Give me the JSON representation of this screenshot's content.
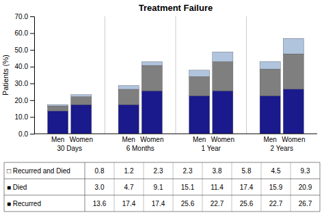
{
  "chart_data": {
    "type": "bar",
    "stacked": true,
    "grid": false,
    "title": "Treatment Failure",
    "ylabel": "Patients (%)",
    "groups": [
      "30 Days",
      "6 Months",
      "1 Year",
      "2 Years"
    ],
    "categories": [
      "Men",
      "Women",
      "Men",
      "Women",
      "Men",
      "Women",
      "Men",
      "Women"
    ],
    "series": [
      {
        "color": "#1a1a8c",
        "values": [
          13.6,
          17.4,
          17.4,
          25.6,
          22.7,
          25.6,
          22.7,
          26.7
        ]
      },
      {
        "color": "#7f7f7f",
        "values": [
          3.0,
          4.7,
          9.1,
          15.1,
          11.4,
          17.4,
          15.9,
          20.9
        ]
      },
      {
        "color": "#b0c4de",
        "values": [
          0.8,
          1.2,
          2.3,
          2.3,
          3.8,
          5.8,
          4.5,
          9.3
        ]
      }
    ],
    "ylim": [
      0,
      70.0
    ],
    "yticks": [
      {
        "value": 0.0,
        "label": "0.0"
      },
      {
        "value": 10.0,
        "label": "10.0"
      },
      {
        "value": 20.0,
        "label": "20.0"
      },
      {
        "value": 30.0,
        "label": "30.0"
      },
      {
        "value": 40.0,
        "label": "40.0"
      },
      {
        "value": 50.0,
        "label": "50.0"
      },
      {
        "value": 60.0,
        "label": "60.0"
      },
      {
        "value": 70.0,
        "label": "70.0"
      }
    ],
    "table": {
      "rows": [
        "□ Recurred and Died",
        "■ Died",
        "■ Recurred"
      ],
      "cells": [
        [
          "0.8",
          "1.2",
          "2.3",
          "2.3",
          "3.8",
          "5.8",
          "4.5",
          "9.3"
        ],
        [
          "3.0",
          "4.7",
          "9.1",
          "15.1",
          "11.4",
          "17.4",
          "15.9",
          "20.9"
        ],
        [
          "13.6",
          "17.4",
          "17.4",
          "25.6",
          "22.7",
          "25.6",
          "22.7",
          "26.7"
        ]
      ]
    }
  }
}
